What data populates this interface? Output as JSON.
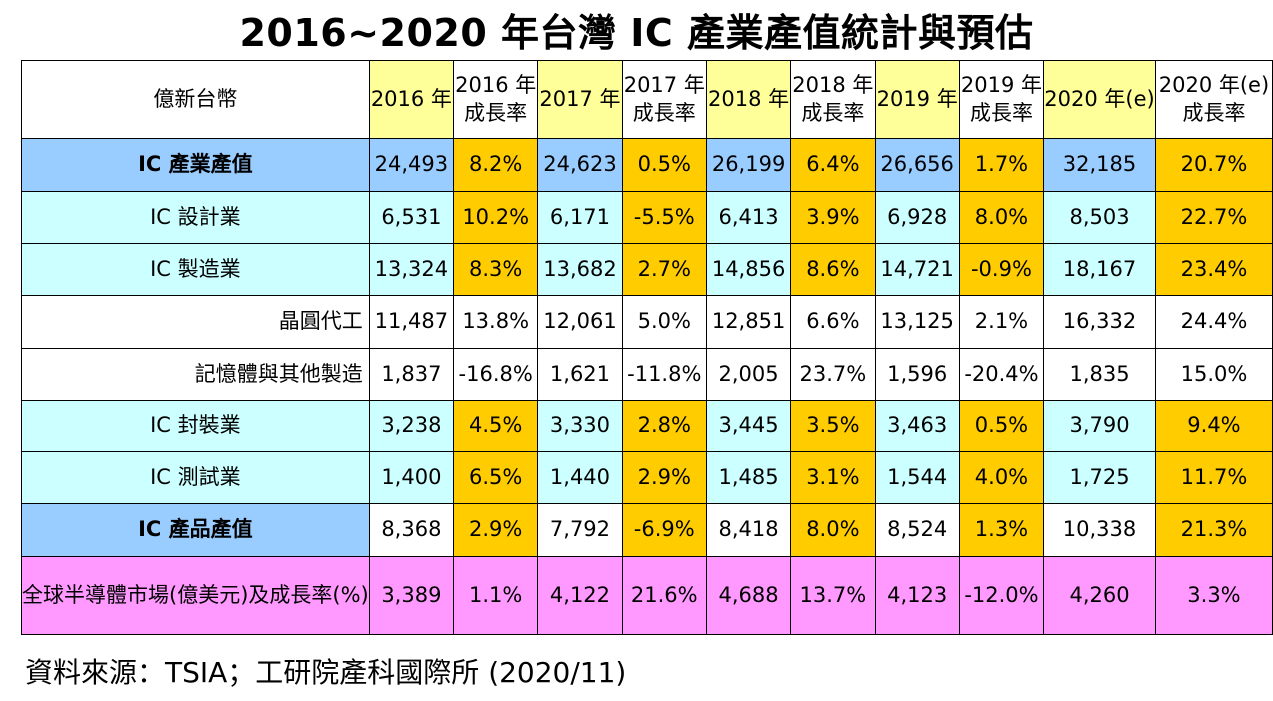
{
  "title": "2016~2020 年台灣 IC 產業產值統計與預估",
  "unit_label": "億新台幣",
  "columns": [
    {
      "line1": "2016 年",
      "line2": ""
    },
    {
      "line1": "2016 年",
      "line2": "成長率"
    },
    {
      "line1": "2017 年",
      "line2": ""
    },
    {
      "line1": "2017 年",
      "line2": "成長率"
    },
    {
      "line1": "2018 年",
      "line2": ""
    },
    {
      "line1": "2018 年",
      "line2": "成長率"
    },
    {
      "line1": "2019 年",
      "line2": ""
    },
    {
      "line1": "2019 年",
      "line2": "成長率"
    },
    {
      "line1": "2020 年(e)",
      "line2": ""
    },
    {
      "line1": "2020 年(e)",
      "line2": "成長率"
    }
  ],
  "rows": [
    {
      "label": "IC 產業產值",
      "values": [
        "24,493",
        "8.2%",
        "24,623",
        "0.5%",
        "26,199",
        "6.4%",
        "26,656",
        "1.7%",
        "32,185",
        "20.7%"
      ]
    },
    {
      "label": "IC 設計業",
      "values": [
        "6,531",
        "10.2%",
        "6,171",
        "-5.5%",
        "6,413",
        "3.9%",
        "6,928",
        "8.0%",
        "8,503",
        "22.7%"
      ]
    },
    {
      "label": "IC 製造業",
      "values": [
        "13,324",
        "8.3%",
        "13,682",
        "2.7%",
        "14,856",
        "8.6%",
        "14,721",
        "-0.9%",
        "18,167",
        "23.4%"
      ]
    },
    {
      "label": "晶圓代工",
      "values": [
        "11,487",
        "13.8%",
        "12,061",
        "5.0%",
        "12,851",
        "6.6%",
        "13,125",
        "2.1%",
        "16,332",
        "24.4%"
      ]
    },
    {
      "label": "記憶體與其他製造",
      "values": [
        "1,837",
        "-16.8%",
        "1,621",
        "-11.8%",
        "2,005",
        "23.7%",
        "1,596",
        "-20.4%",
        "1,835",
        "15.0%"
      ]
    },
    {
      "label": "IC 封裝業",
      "values": [
        "3,238",
        "4.5%",
        "3,330",
        "2.8%",
        "3,445",
        "3.5%",
        "3,463",
        "0.5%",
        "3,790",
        "9.4%"
      ]
    },
    {
      "label": "IC 測試業",
      "values": [
        "1,400",
        "6.5%",
        "1,440",
        "2.9%",
        "1,485",
        "3.1%",
        "1,544",
        "4.0%",
        "1,725",
        "11.7%"
      ]
    },
    {
      "label": "IC 產品產值",
      "values": [
        "8,368",
        "2.9%",
        "7,792",
        "-6.9%",
        "8,418",
        "8.0%",
        "8,524",
        "1.3%",
        "10,338",
        "21.3%"
      ]
    },
    {
      "label": "全球半導體市場(億美元)及成長率(%)",
      "values": [
        "3,389",
        "1.1%",
        "4,122",
        "21.6%",
        "4,688",
        "13.7%",
        "4,123",
        "-12.0%",
        "4,260",
        "3.3%"
      ]
    }
  ],
  "source": "資料來源：TSIA；工研院產科國際所 (2020/11)",
  "colors": {
    "header_year": "#ffff99",
    "growth": "#ffcc00",
    "total_rows": "#99ccff",
    "segment_rows": "#ccffff",
    "global_row": "#ff99ff"
  }
}
